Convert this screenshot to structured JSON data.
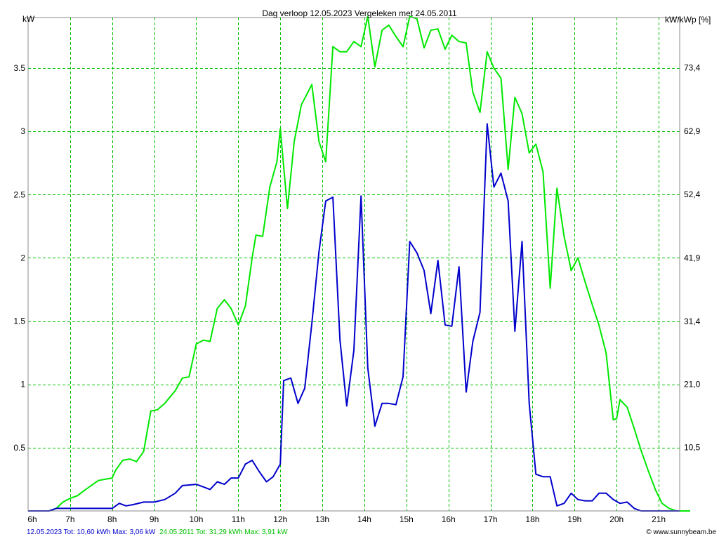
{
  "chart_data": {
    "type": "line",
    "title": "Dag  verloop 12.05.2023   Vergeleken met 24.05.2011",
    "ylabel": "kW",
    "y2label": "kW/kWp [%]",
    "xlim": [
      6,
      21.5
    ],
    "ylim": [
      0,
      3.9
    ],
    "y2lim": [
      0,
      81.7
    ],
    "grid": true,
    "x_ticks": [
      {
        "value": 6,
        "label": "6h"
      },
      {
        "value": 7,
        "label": "7h"
      },
      {
        "value": 8,
        "label": "8h"
      },
      {
        "value": 9,
        "label": "9h"
      },
      {
        "value": 10,
        "label": "10h"
      },
      {
        "value": 11,
        "label": "11h"
      },
      {
        "value": 12,
        "label": "12h"
      },
      {
        "value": 13,
        "label": "13h"
      },
      {
        "value": 14,
        "label": "14h"
      },
      {
        "value": 15,
        "label": "15h"
      },
      {
        "value": 16,
        "label": "16h"
      },
      {
        "value": 17,
        "label": "17h"
      },
      {
        "value": 18,
        "label": "18h"
      },
      {
        "value": 19,
        "label": "19h"
      },
      {
        "value": 20,
        "label": "20h"
      },
      {
        "value": 21,
        "label": "21h"
      }
    ],
    "y_ticks": [
      {
        "value": 0.5,
        "label": "0.5"
      },
      {
        "value": 1,
        "label": "1"
      },
      {
        "value": 1.5,
        "label": "1.5"
      },
      {
        "value": 2,
        "label": "2"
      },
      {
        "value": 2.5,
        "label": "2.5"
      },
      {
        "value": 3,
        "label": "3"
      },
      {
        "value": 3.5,
        "label": "3.5"
      }
    ],
    "y2_ticks": [
      {
        "value": 10.5,
        "label": "10,5"
      },
      {
        "value": 21.0,
        "label": "21,0"
      },
      {
        "value": 31.4,
        "label": "31,4"
      },
      {
        "value": 41.9,
        "label": "41,9"
      },
      {
        "value": 52.4,
        "label": "52,4"
      },
      {
        "value": 62.9,
        "label": "62,9"
      },
      {
        "value": 73.4,
        "label": "73,4"
      }
    ],
    "series": [
      {
        "name": "12.05.2023",
        "color": "#0000cc",
        "summary": "12.05.2023 Tot: 10,60 kWh Max: 3,06 kW",
        "x": [
          6.0,
          6.5,
          6.67,
          7.0,
          7.5,
          8.0,
          8.17,
          8.33,
          8.5,
          8.75,
          9.0,
          9.25,
          9.5,
          9.67,
          10.0,
          10.17,
          10.33,
          10.5,
          10.67,
          10.83,
          11.0,
          11.17,
          11.33,
          11.5,
          11.67,
          11.83,
          12.0,
          12.08,
          12.25,
          12.42,
          12.58,
          12.75,
          12.92,
          13.08,
          13.25,
          13.42,
          13.58,
          13.75,
          13.92,
          14.08,
          14.25,
          14.42,
          14.58,
          14.75,
          14.92,
          15.08,
          15.25,
          15.42,
          15.58,
          15.75,
          15.92,
          16.08,
          16.25,
          16.42,
          16.58,
          16.75,
          16.92,
          17.08,
          17.25,
          17.42,
          17.58,
          17.75,
          17.92,
          18.08,
          18.25,
          18.42,
          18.58,
          18.75,
          18.92,
          19.08,
          19.25,
          19.42,
          19.58,
          19.75,
          19.92,
          20.08,
          20.25,
          20.42,
          20.58,
          20.75,
          21.0,
          21.5
        ],
        "y": [
          0.0,
          0.0,
          0.02,
          0.02,
          0.02,
          0.02,
          0.06,
          0.04,
          0.05,
          0.07,
          0.07,
          0.09,
          0.14,
          0.2,
          0.21,
          0.19,
          0.17,
          0.23,
          0.21,
          0.26,
          0.26,
          0.37,
          0.4,
          0.31,
          0.23,
          0.27,
          0.37,
          1.03,
          1.05,
          0.85,
          0.97,
          1.48,
          2.05,
          2.45,
          2.48,
          1.35,
          0.83,
          1.27,
          2.49,
          1.13,
          0.67,
          0.85,
          0.85,
          0.84,
          1.06,
          2.13,
          2.04,
          1.9,
          1.56,
          1.98,
          1.47,
          1.46,
          1.93,
          0.94,
          1.34,
          1.57,
          3.06,
          2.56,
          2.67,
          2.45,
          1.42,
          2.13,
          0.85,
          0.29,
          0.27,
          0.27,
          0.04,
          0.06,
          0.14,
          0.09,
          0.08,
          0.08,
          0.14,
          0.14,
          0.09,
          0.06,
          0.07,
          0.02,
          0.0,
          0.0,
          0.0,
          0.0
        ]
      },
      {
        "name": "24.05.2011",
        "color": "#00e800",
        "summary": "24.05.2011 Tot: 31,29 kWh Max: 3,91 kW",
        "x": [
          6.0,
          6.25,
          6.5,
          6.67,
          6.83,
          7.0,
          7.17,
          7.33,
          7.5,
          7.67,
          7.83,
          8.0,
          8.08,
          8.25,
          8.42,
          8.58,
          8.75,
          8.92,
          9.08,
          9.25,
          9.5,
          9.67,
          9.83,
          10.0,
          10.17,
          10.33,
          10.5,
          10.67,
          10.83,
          11.0,
          11.17,
          11.33,
          11.42,
          11.58,
          11.75,
          11.92,
          12.0,
          12.17,
          12.33,
          12.5,
          12.75,
          12.92,
          13.08,
          13.25,
          13.42,
          13.58,
          13.75,
          13.92,
          14.08,
          14.25,
          14.42,
          14.58,
          14.75,
          14.92,
          15.08,
          15.25,
          15.42,
          15.58,
          15.75,
          15.92,
          16.08,
          16.25,
          16.42,
          16.58,
          16.75,
          16.92,
          17.08,
          17.25,
          17.42,
          17.58,
          17.75,
          17.92,
          18.08,
          18.25,
          18.42,
          18.58,
          18.75,
          18.92,
          19.08,
          19.25,
          19.42,
          19.58,
          19.75,
          19.92,
          20.0,
          20.08,
          20.25,
          20.42,
          20.58,
          20.75,
          20.92,
          21.08,
          21.25,
          21.42,
          21.58,
          21.75
        ],
        "y": [
          0.0,
          0.0,
          0.0,
          0.02,
          0.07,
          0.1,
          0.12,
          0.16,
          0.2,
          0.24,
          0.25,
          0.26,
          0.32,
          0.4,
          0.41,
          0.39,
          0.47,
          0.79,
          0.8,
          0.85,
          0.95,
          1.05,
          1.06,
          1.32,
          1.35,
          1.34,
          1.6,
          1.67,
          1.6,
          1.47,
          1.62,
          2.0,
          2.18,
          2.17,
          2.56,
          2.76,
          3.02,
          2.39,
          2.92,
          3.21,
          3.37,
          2.92,
          2.76,
          3.67,
          3.63,
          3.63,
          3.71,
          3.67,
          3.91,
          3.51,
          3.8,
          3.84,
          3.75,
          3.67,
          3.91,
          3.89,
          3.66,
          3.8,
          3.81,
          3.65,
          3.76,
          3.71,
          3.7,
          3.31,
          3.15,
          3.63,
          3.5,
          3.42,
          2.7,
          3.27,
          3.14,
          2.83,
          2.9,
          2.68,
          1.76,
          2.55,
          2.17,
          1.9,
          2.0,
          1.81,
          1.63,
          1.47,
          1.25,
          0.72,
          0.73,
          0.88,
          0.82,
          0.65,
          0.48,
          0.32,
          0.17,
          0.06,
          0.02,
          0.0,
          0.0,
          0.0
        ]
      }
    ]
  },
  "footer": {
    "credit": "© www.sunnybeam.be"
  }
}
